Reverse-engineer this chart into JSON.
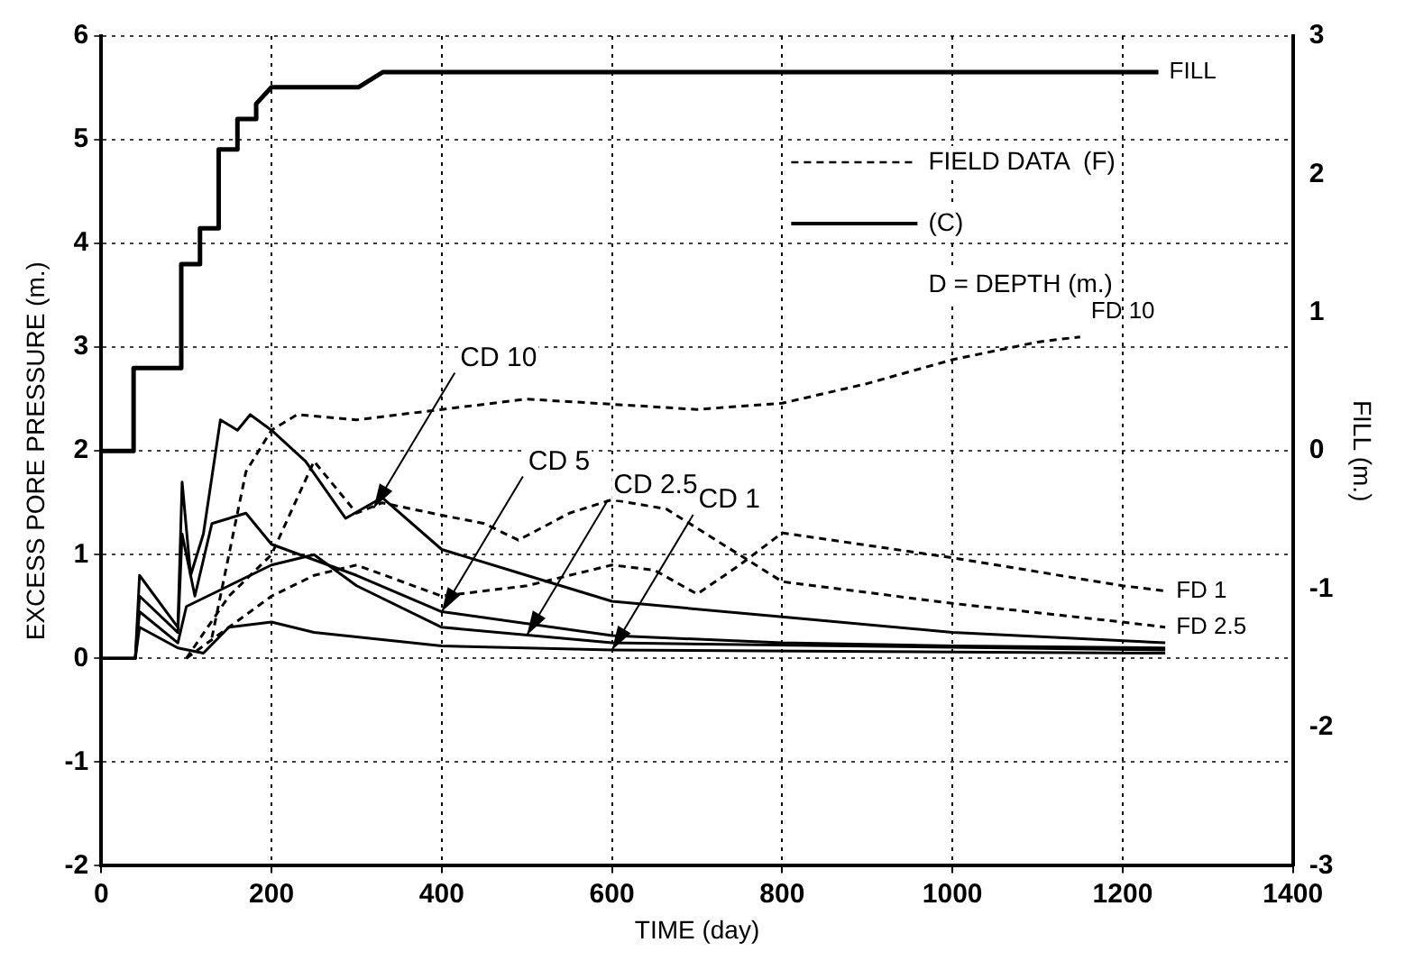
{
  "chart_data": {
    "type": "line",
    "xlabel": "TIME (day)",
    "ylabel": "EXCESS PORE PRESSURE (m.)",
    "y2label": "FILL (m.)",
    "xlim": [
      0,
      1400
    ],
    "xticks": [
      0,
      200,
      400,
      600,
      800,
      1000,
      1200,
      1400
    ],
    "ylim": [
      -2,
      6
    ],
    "yticks": [
      -2,
      -1,
      0,
      1,
      2,
      3,
      4,
      5,
      6
    ],
    "y2lim": [
      -3,
      3
    ],
    "y2ticks": [
      -3,
      -2,
      -1,
      0,
      1,
      2,
      3
    ],
    "grid": true,
    "legend": false,
    "marker": "none",
    "series": [
      {
        "name": "FILL",
        "color": "#000000",
        "axis": "y2",
        "line_style": "solid",
        "x": [
          0,
          38,
          38,
          94,
          94,
          116,
          116,
          138,
          138,
          160,
          160,
          182,
          182,
          200,
          302,
          331,
          1242
        ],
        "values": [
          0,
          0,
          0.6,
          0.6,
          1.35,
          1.35,
          1.61,
          1.61,
          2.18,
          2.18,
          2.4,
          2.4,
          2.51,
          2.63,
          2.63,
          2.74,
          2.74
        ]
      },
      {
        "name": "FD 10",
        "color": "#000000",
        "line_style": "dashed",
        "x": [
          130,
          150,
          170,
          200,
          230,
          300,
          350,
          400,
          500,
          600,
          700,
          800,
          900,
          1000,
          1100,
          1150
        ],
        "values": [
          0.2,
          1.0,
          1.8,
          2.2,
          2.35,
          2.3,
          2.35,
          2.4,
          2.5,
          2.45,
          2.4,
          2.46,
          2.65,
          2.88,
          3.05,
          3.1
        ]
      },
      {
        "name": "FD 1",
        "color": "#000000",
        "line_style": "dashed",
        "x": [
          100,
          150,
          200,
          250,
          300,
          400,
          500,
          600,
          650,
          700,
          750,
          800,
          1000,
          1200,
          1250
        ],
        "values": [
          0,
          0.3,
          0.6,
          0.8,
          0.9,
          0.6,
          0.7,
          0.9,
          0.85,
          0.62,
          0.9,
          1.21,
          0.97,
          0.7,
          0.65
        ]
      },
      {
        "name": "FD 2.5",
        "color": "#000000",
        "line_style": "dashed",
        "x": [
          100,
          150,
          200,
          250,
          300,
          330,
          400,
          450,
          490,
          550,
          600,
          664,
          800,
          1000,
          1200,
          1250
        ],
        "values": [
          0,
          0.6,
          1.0,
          1.9,
          1.4,
          1.5,
          1.38,
          1.3,
          1.14,
          1.4,
          1.53,
          1.44,
          0.74,
          0.53,
          0.35,
          0.3
        ]
      },
      {
        "color": "#000000",
        "line_style": "solid",
        "x": [
          0,
          40,
          45,
          90,
          95,
          105,
          120,
          140,
          160,
          175,
          200,
          240,
          287,
          330,
          400,
          500,
          600,
          800,
          1000,
          1250
        ],
        "values": [
          0,
          0,
          0.8,
          0.3,
          1.7,
          0.8,
          1.2,
          2.3,
          2.2,
          2.35,
          2.2,
          1.9,
          1.35,
          1.55,
          1.05,
          0.8,
          0.55,
          0.4,
          0.25,
          0.15
        ]
      },
      {
        "color": "#000000",
        "line_style": "solid",
        "x": [
          0,
          40,
          45,
          90,
          95,
          110,
          130,
          170,
          200,
          300,
          400,
          600,
          800,
          1000,
          1250
        ],
        "values": [
          0,
          0,
          0.6,
          0.25,
          1.2,
          0.6,
          1.3,
          1.4,
          1.1,
          0.8,
          0.45,
          0.22,
          0.15,
          0.12,
          0.1
        ]
      },
      {
        "color": "#000000",
        "line_style": "solid",
        "x": [
          0,
          40,
          45,
          90,
          100,
          150,
          200,
          250,
          300,
          400,
          600,
          1250
        ],
        "values": [
          0,
          0,
          0.45,
          0.15,
          0.5,
          0.7,
          0.9,
          1.0,
          0.7,
          0.3,
          0.15,
          0.08
        ]
      },
      {
        "color": "#000000",
        "line_style": "solid",
        "x": [
          0,
          40,
          45,
          90,
          120,
          150,
          200,
          250,
          400,
          600,
          1250
        ],
        "values": [
          0,
          0,
          0.3,
          0.1,
          0.05,
          0.3,
          0.35,
          0.25,
          0.12,
          0.08,
          0.05
        ]
      }
    ],
    "annotations": [
      "FIELD DATA  (F)",
      "(C)",
      "D = DEPTH (m.)",
      {
        "text": "CD 10",
        "x": 320,
        "y": 1.45
      },
      {
        "text": "CD 5",
        "x": 400,
        "y": 0.45
      },
      {
        "text": "CD 2.5",
        "x": 500,
        "y": 0.225
      },
      {
        "text": "CD 1",
        "x": 600,
        "y": 0.08
      }
    ]
  }
}
